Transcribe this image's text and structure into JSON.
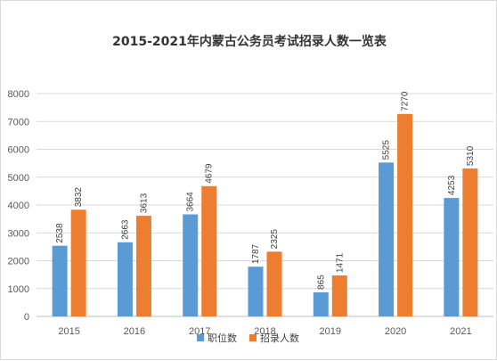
{
  "chart_data": {
    "type": "bar",
    "title": "2015-2021年内蒙古公务员考试招录人数一览表",
    "xlabel": "",
    "ylabel": "",
    "categories": [
      "2015",
      "2016",
      "2017",
      "2018",
      "2019",
      "2020",
      "2021"
    ],
    "series": [
      {
        "name": "职位数",
        "color": "#5b9bd5",
        "values": [
          2538,
          2663,
          3664,
          1787,
          865,
          5525,
          4253
        ]
      },
      {
        "name": "招录人数",
        "color": "#ed7d31",
        "values": [
          3832,
          3613,
          4679,
          2325,
          1471,
          7270,
          5310
        ]
      }
    ],
    "ylim": [
      0,
      8000
    ],
    "yticks": [
      0,
      1000,
      2000,
      3000,
      4000,
      5000,
      6000,
      7000,
      8000
    ],
    "grid": true,
    "legend_position": "bottom",
    "data_labels": true
  }
}
